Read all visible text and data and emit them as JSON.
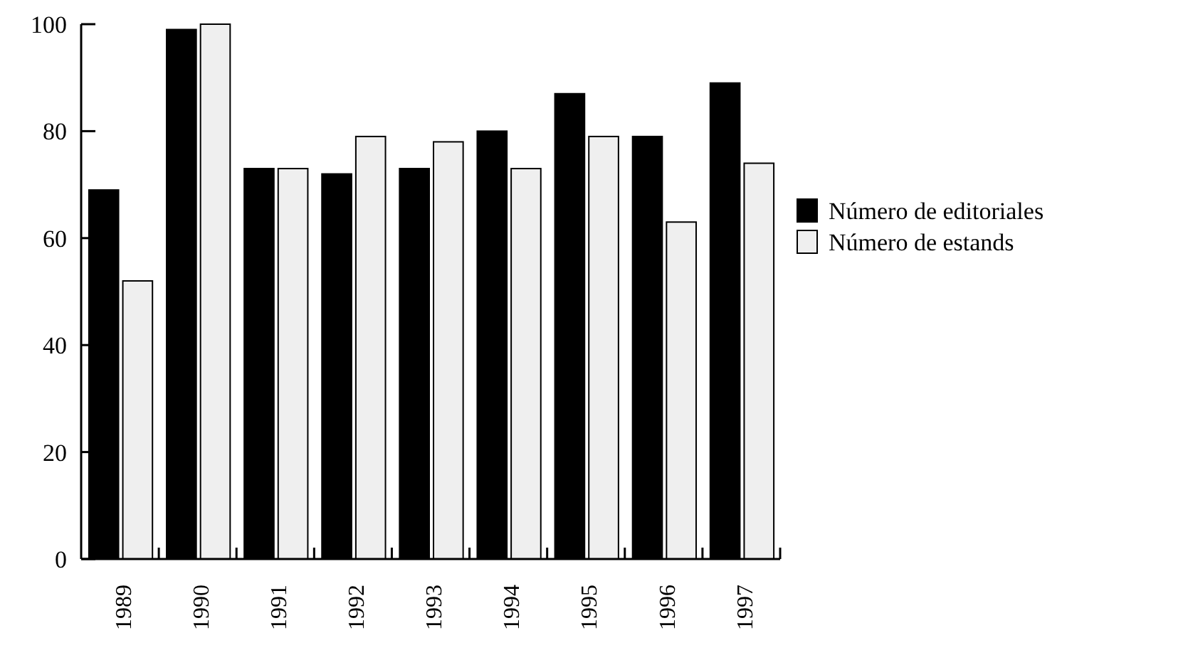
{
  "chart_data": {
    "type": "bar",
    "categories": [
      "1989",
      "1990",
      "1991",
      "1992",
      "1993",
      "1994",
      "1995",
      "1996",
      "1997"
    ],
    "series": [
      {
        "name": "Número de editoriales",
        "color": "#000000",
        "values": [
          69,
          99,
          73,
          72,
          73,
          80,
          87,
          79,
          89
        ]
      },
      {
        "name": "Número de estands",
        "color": "#efefef",
        "values": [
          52,
          100,
          73,
          79,
          78,
          73,
          79,
          63,
          74
        ]
      }
    ],
    "ylim": [
      0,
      100
    ],
    "yticks": [
      0,
      20,
      40,
      60,
      80,
      100
    ],
    "legend": "right",
    "grid": false
  }
}
